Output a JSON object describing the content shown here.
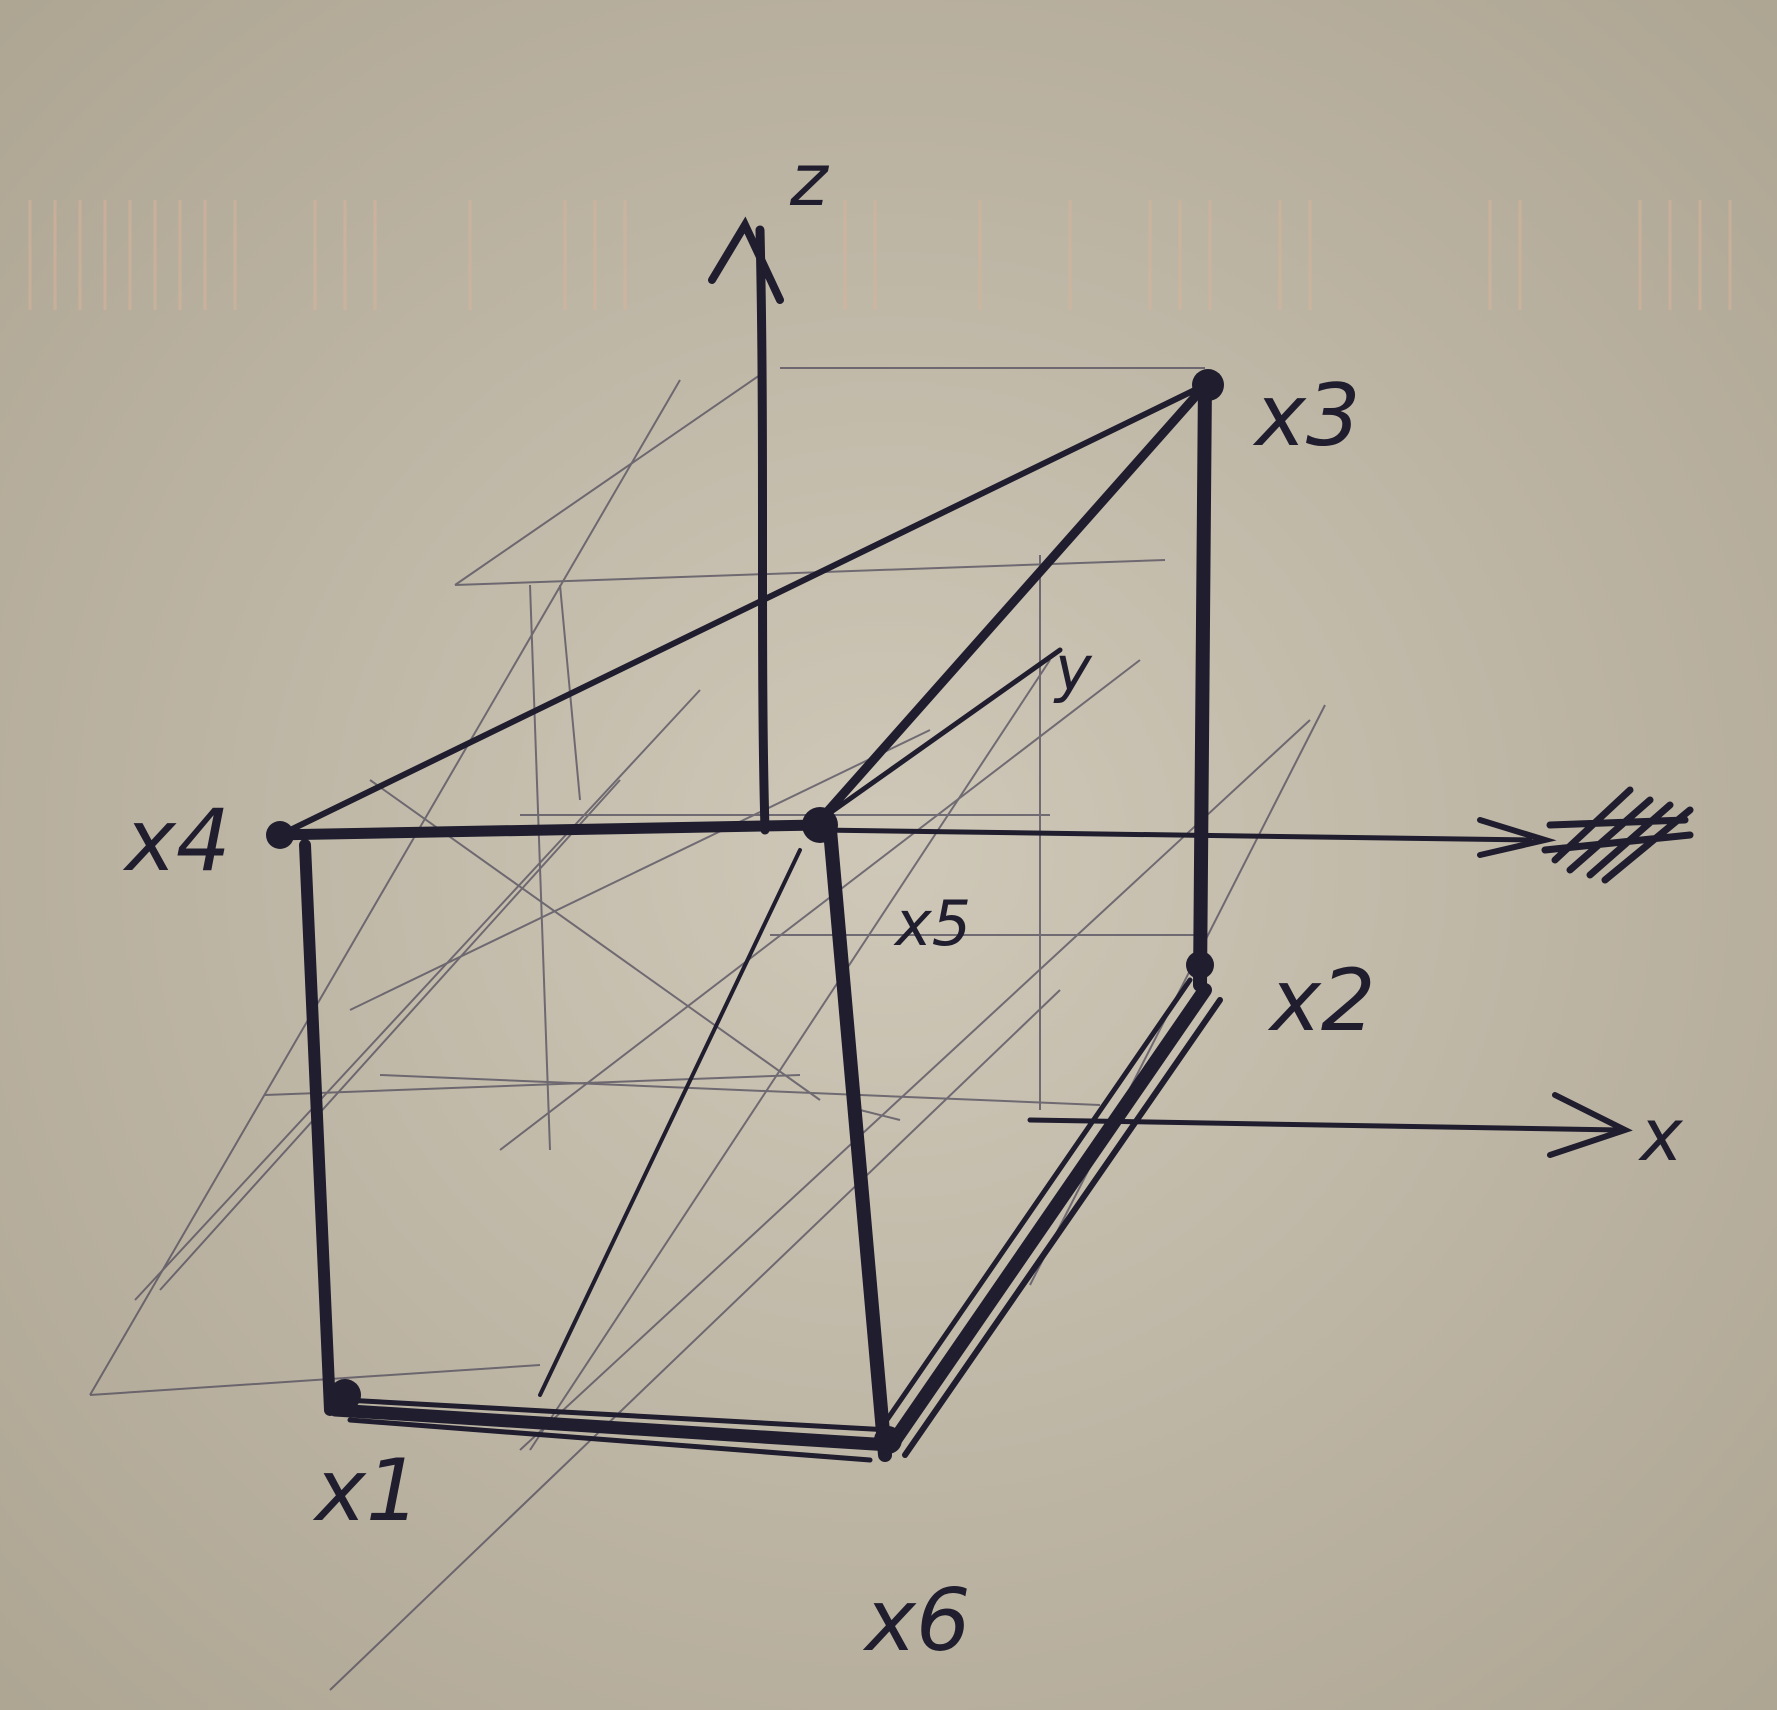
{
  "sketch": {
    "labels": {
      "z_axis": "z",
      "y_axis": "y",
      "x_axis": "x",
      "x1": "x1",
      "x2": "x2",
      "x3": "x3",
      "x4": "x4",
      "x5": "x5",
      "x6": "x6"
    },
    "colors": {
      "paper": "#c4bcab",
      "paper_edge": "#b3aa99",
      "ink_dark": "#1f1d2e",
      "ink_faint": "#4a4658",
      "stripe": "#d9b8a0"
    }
  }
}
